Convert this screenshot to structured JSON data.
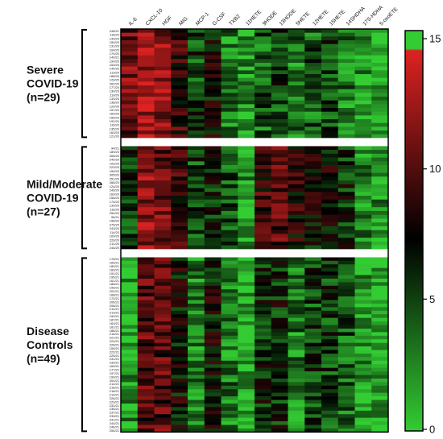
{
  "chart_data": {
    "type": "heatmap",
    "color_scale": {
      "min": 0,
      "max": 15,
      "ticks": [
        0,
        5,
        10,
        15
      ],
      "colors": {
        "low": "#33cc33",
        "mid": "#000000",
        "high": "#dd2222"
      }
    },
    "columns": [
      "IL-6",
      "CXCL-10",
      "HGF",
      "MIG",
      "MCP-1",
      "G-CSF",
      "TXB2",
      "11HETE",
      "9HODE",
      "13HODE",
      "5HETE",
      "12HETE",
      "15HETE",
      "14SHDHA",
      "17S-HDHA",
      "5-oxoETE"
    ],
    "groups": [
      {
        "label": [
          "Severe",
          "COVID-19",
          "(n=29)"
        ],
        "n": 29,
        "column_profile": [
          11,
          13,
          12,
          9,
          5,
          7,
          3,
          2,
          4,
          5,
          3,
          4,
          5,
          3,
          2,
          1
        ],
        "samples": [
          "248/21",
          "118/20",
          "140/20",
          "150/20",
          "131/20",
          "104/20",
          "170/20",
          "140/21",
          "190/20",
          "153/20",
          "144/20",
          "113/20",
          "188/20",
          "129/20",
          "262/20",
          "177/20",
          "130/20",
          "119/20",
          "133/20",
          "138/20",
          "120/20",
          "157/20",
          "164/20",
          "155/20",
          "192/20",
          "115/20",
          "135/20",
          "163/20",
          "121/20"
        ]
      },
      {
        "label": [
          "Mild/Moderate",
          "COVID-19",
          "(n=27)"
        ],
        "n": 27,
        "column_profile": [
          5,
          12,
          11,
          9,
          5,
          6,
          4,
          2,
          9,
          10,
          8,
          7,
          7,
          6,
          3,
          2
        ],
        "samples": [
          "94/21",
          "189/20",
          "306/20",
          "240/20",
          "102/20",
          "223/20",
          "159/20",
          "305/20",
          "251/20",
          "266/20",
          "124/20",
          "245/20",
          "169/20",
          "158/20",
          "174/20",
          "139/20",
          "116/20",
          "254/20",
          "96/21",
          "198/20",
          "275/20",
          "243/20",
          "114/20",
          "109/20",
          "226/20",
          "211/20",
          "244/20"
        ]
      },
      {
        "label": [
          "Disease",
          "Controls",
          "(n=49)"
        ],
        "n": 49,
        "column_profile": [
          2,
          10,
          10,
          7,
          3,
          7,
          3,
          1,
          6,
          6,
          3,
          5,
          5,
          4,
          2,
          1
        ],
        "samples": [
          "176/21",
          "165/21",
          "180/21",
          "183/21",
          "191/21",
          "195/21",
          "161/21",
          "188/21",
          "196/21",
          "202/21",
          "168/21",
          "172/21",
          "206/21",
          "208/21",
          "210/21",
          "213/21",
          "190/21",
          "187/21",
          "163/21",
          "181/21",
          "186/21",
          "215/21",
          "221/21",
          "224/21",
          "228/21",
          "159/21",
          "222/21",
          "225/21",
          "231/21",
          "233/21",
          "169/21",
          "177/21",
          "197/21",
          "199/21",
          "204/21",
          "212/21",
          "216/21",
          "218/21",
          "219/21",
          "226/21",
          "229/21",
          "232/21",
          "235/21",
          "237/21",
          "239/21",
          "241/21",
          "244/21",
          "246/21",
          "254/21"
        ]
      }
    ]
  }
}
